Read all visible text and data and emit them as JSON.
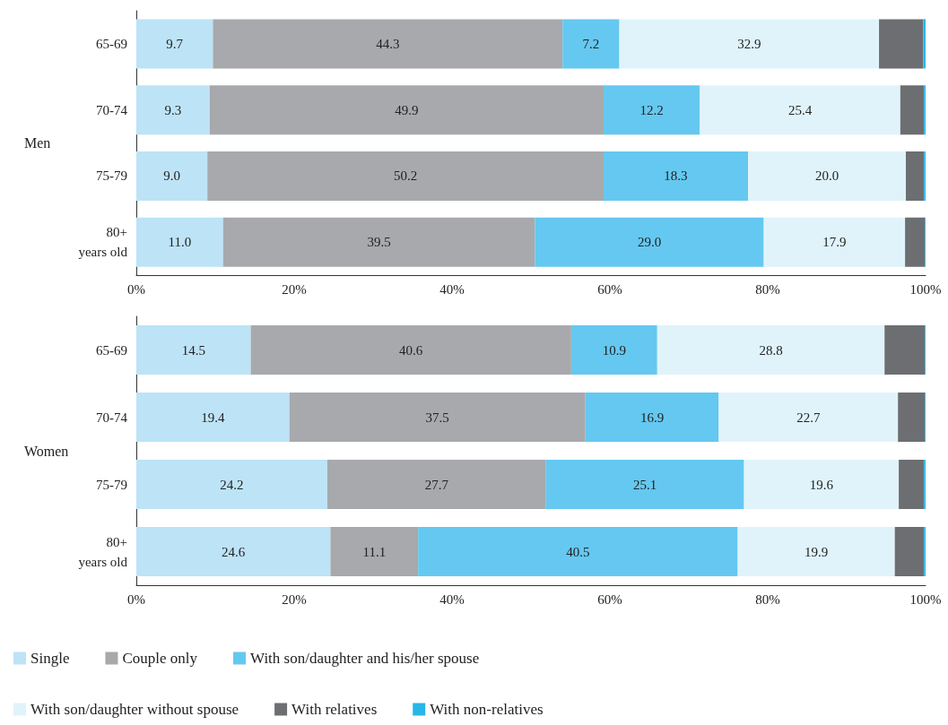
{
  "chart_data": [
    {
      "type": "bar",
      "orientation": "horizontal",
      "stacked": true,
      "ylabel": "Men",
      "categories": [
        "65-69",
        "70-74",
        "75-79",
        "80+\nyears old"
      ],
      "xlim": [
        0,
        100
      ],
      "xticks": [
        {
          "value": 0,
          "label": "0%"
        },
        {
          "value": 20,
          "label": "20%"
        },
        {
          "value": 40,
          "label": "40%"
        },
        {
          "value": 60,
          "label": "60%"
        },
        {
          "value": 80,
          "label": "80%"
        },
        {
          "value": 100,
          "label": "100%"
        }
      ],
      "grid": false,
      "legend": false,
      "series": [
        {
          "color": "#bde3f6",
          "values": [
            9.7,
            9.3,
            9.0,
            11.0
          ],
          "value_labels": [
            "9.7",
            "9.3",
            "9.0",
            "11.0"
          ]
        },
        {
          "color": "#a7a9ac",
          "values": [
            44.3,
            49.9,
            50.2,
            39.5
          ],
          "value_labels": [
            "44.3",
            "49.9",
            "50.2",
            "39.5"
          ]
        },
        {
          "color": "#65c8f0",
          "values": [
            7.2,
            12.2,
            18.3,
            29.0
          ],
          "value_labels": [
            "7.2",
            "12.2",
            "18.3",
            "29.0"
          ]
        },
        {
          "color": "#e0f3fb",
          "values": [
            32.9,
            25.4,
            20.0,
            17.9
          ],
          "value_labels": [
            "32.9",
            "25.4",
            "20.0",
            "17.9"
          ]
        },
        {
          "color": "#6d6e71",
          "values": [
            5.6,
            3.0,
            2.3,
            2.5
          ],
          "value_labels": [
            null,
            null,
            null,
            null
          ]
        },
        {
          "color": "#27b6e8",
          "values": [
            0.3,
            0.2,
            0.2,
            0.1
          ],
          "value_labels": [
            null,
            null,
            null,
            null
          ]
        }
      ]
    },
    {
      "type": "bar",
      "orientation": "horizontal",
      "stacked": true,
      "ylabel": "Women",
      "categories": [
        "65-69",
        "70-74",
        "75-79",
        "80+\nyears old"
      ],
      "xlim": [
        0,
        100
      ],
      "xticks": [
        {
          "value": 0,
          "label": "0%"
        },
        {
          "value": 20,
          "label": "20%"
        },
        {
          "value": 40,
          "label": "40%"
        },
        {
          "value": 60,
          "label": "60%"
        },
        {
          "value": 80,
          "label": "80%"
        },
        {
          "value": 100,
          "label": "100%"
        }
      ],
      "grid": false,
      "legend": "bottom",
      "series": [
        {
          "name": "Single",
          "color": "#bde3f6",
          "values": [
            14.5,
            19.4,
            24.2,
            24.6
          ],
          "value_labels": [
            "14.5",
            "19.4",
            "24.2",
            "24.6"
          ]
        },
        {
          "name": "Couple only",
          "color": "#a7a9ac",
          "values": [
            40.6,
            37.5,
            27.7,
            11.1
          ],
          "value_labels": [
            "40.6",
            "37.5",
            "27.7",
            "11.1"
          ]
        },
        {
          "name": "With son/daughter and his/her spouse",
          "color": "#65c8f0",
          "values": [
            10.9,
            16.9,
            25.1,
            40.5
          ],
          "value_labels": [
            "10.9",
            "16.9",
            "25.1",
            "40.5"
          ]
        },
        {
          "name": "With son/daughter without spouse",
          "color": "#e0f3fb",
          "values": [
            28.8,
            22.7,
            19.6,
            19.9
          ],
          "value_labels": [
            "28.8",
            "22.7",
            "19.6",
            "19.9"
          ]
        },
        {
          "name": "With relatives",
          "color": "#6d6e71",
          "values": [
            5.1,
            3.4,
            3.2,
            3.7
          ],
          "value_labels": [
            null,
            null,
            null,
            null
          ]
        },
        {
          "name": "With non-relatives",
          "color": "#27b6e8",
          "values": [
            0.1,
            0.1,
            0.2,
            0.2
          ],
          "value_labels": [
            null,
            null,
            null,
            null
          ]
        }
      ]
    }
  ]
}
